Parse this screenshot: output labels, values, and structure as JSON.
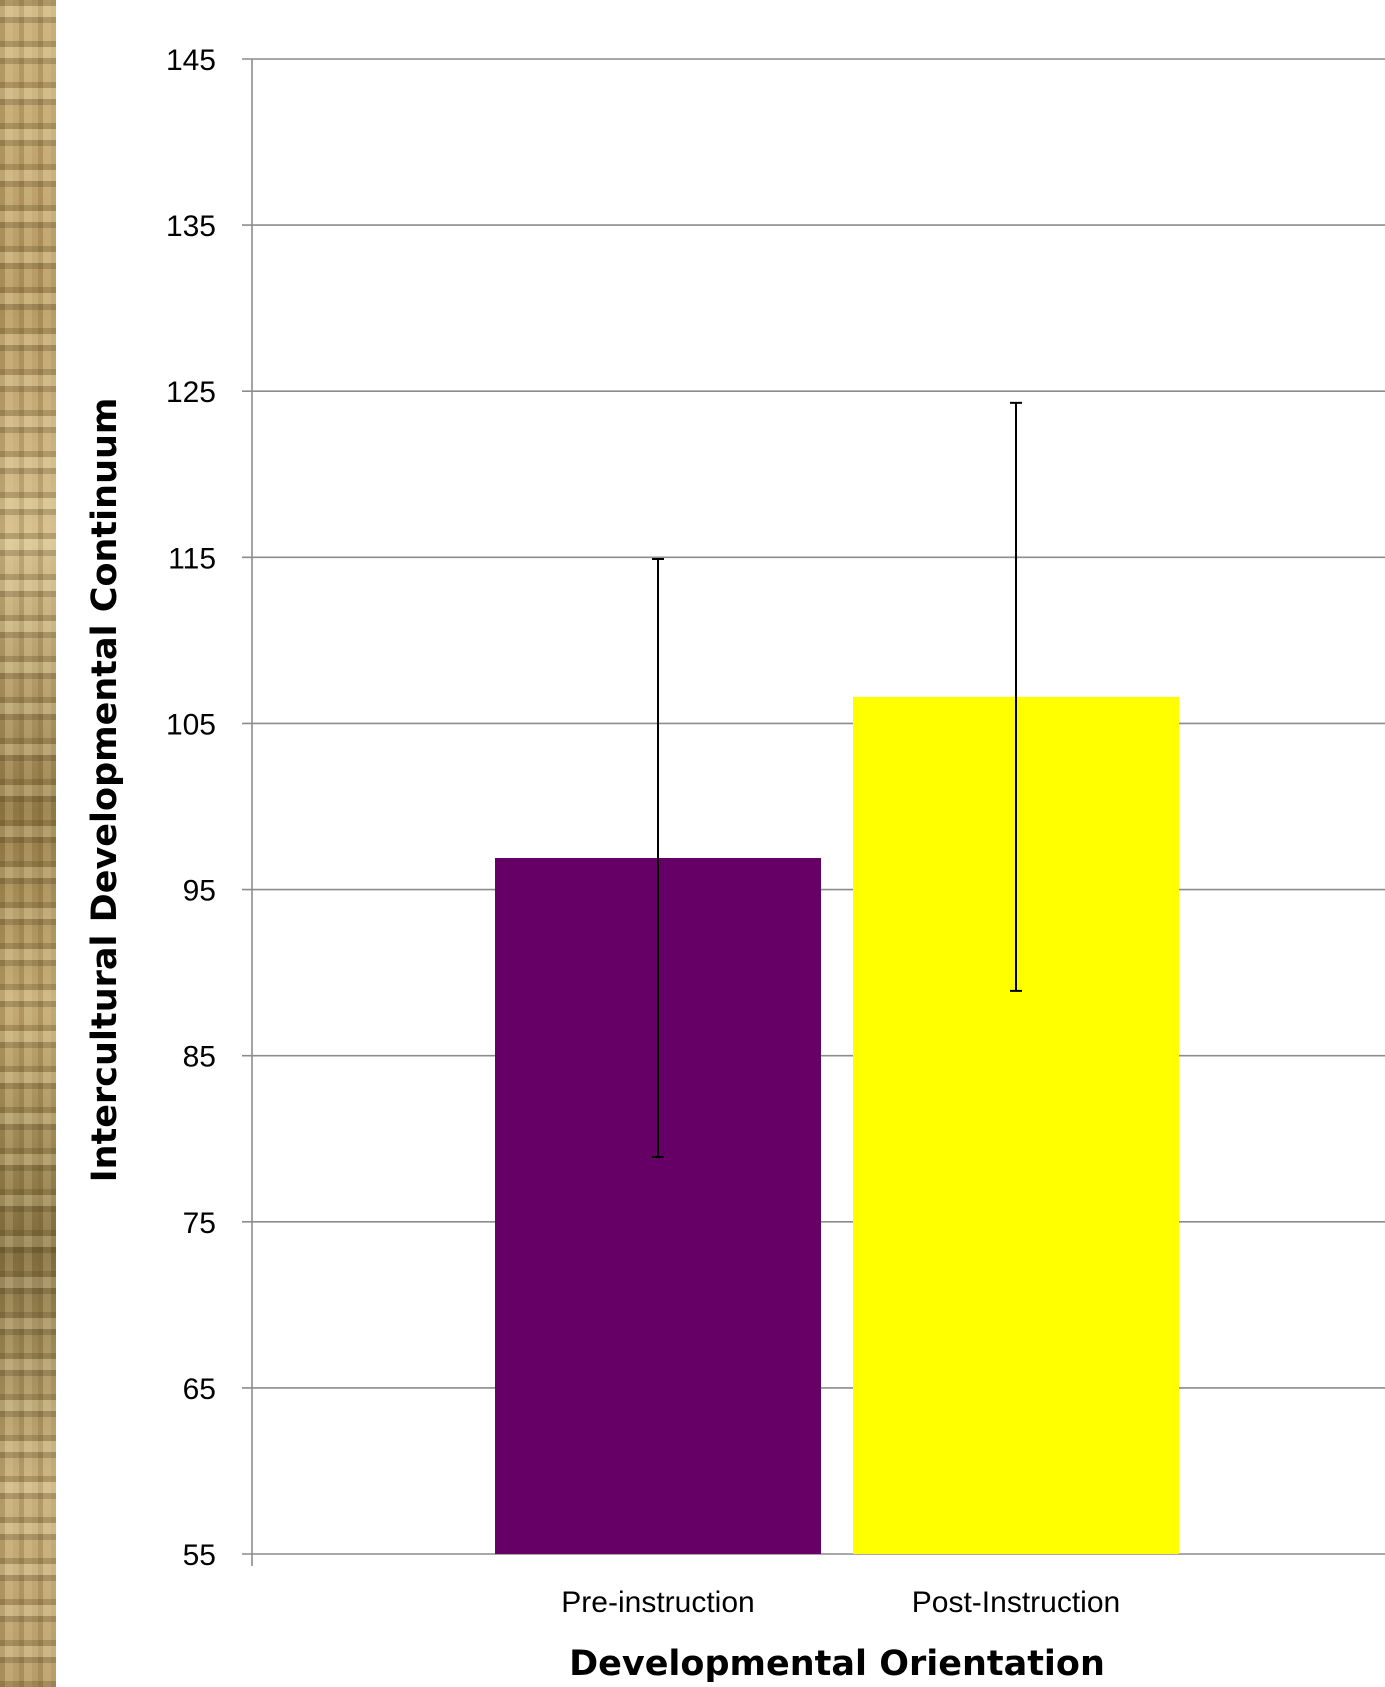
{
  "chart_data": {
    "type": "bar",
    "title": "",
    "xlabel": "Developmental Orientation",
    "ylabel": "Intercultural Developmental Continuum",
    "ylim": [
      55,
      145
    ],
    "yticks": [
      55,
      65,
      75,
      85,
      95,
      105,
      115,
      125,
      135,
      145
    ],
    "grid": true,
    "legend": "none",
    "categories": [
      "Pre-instruction",
      "Post-Instruction"
    ],
    "values": [
      96.9,
      106.6
    ],
    "error_bars": [
      {
        "low": 78.9,
        "high": 114.9
      },
      {
        "low": 88.9,
        "high": 124.3
      }
    ],
    "colors": [
      "#660066",
      "#ffff00"
    ],
    "gridline_color": "#8c8c8c",
    "errorbar_color": "#000000"
  }
}
